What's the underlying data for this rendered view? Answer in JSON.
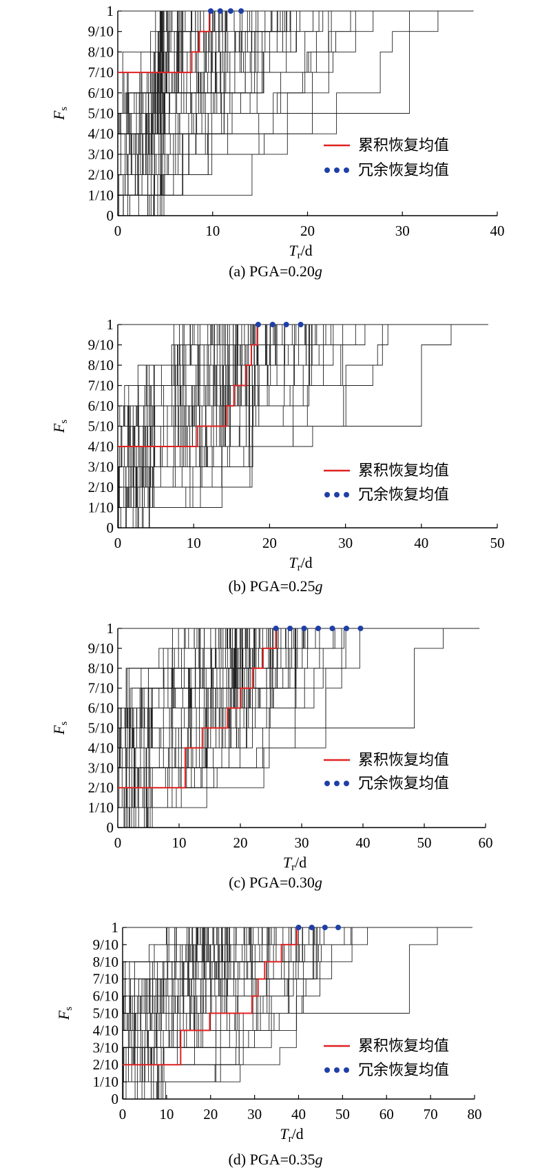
{
  "legend": {
    "cumulative_label": "累积恢复均值",
    "redundant_label": "冗余恢复均值",
    "cumulative_color": "#e02020",
    "redundant_color": "#1f3fa8"
  },
  "axis_label": {
    "y_main": "F",
    "y_sub": "s",
    "x_main": "T",
    "x_sub": "r",
    "x_unit": "/d"
  },
  "colors": {
    "traces": "#1f1f1f",
    "axis": "#000000"
  },
  "y_tick_labels": [
    "0",
    "1/10",
    "2/10",
    "3/10",
    "4/10",
    "5/10",
    "6/10",
    "7/10",
    "8/10",
    "9/10",
    "1"
  ],
  "chart_data": [
    {
      "type": "line",
      "caption_prefix": "(a) PGA=0.20",
      "caption_suffix": "g",
      "xlim": [
        0,
        40
      ],
      "x_ticks": [
        0,
        10,
        20,
        30,
        40
      ],
      "ylim": [
        0,
        1
      ],
      "cumulative_mean_steps": [
        [
          0,
          0.7
        ],
        [
          7.8,
          0.8
        ],
        [
          8.6,
          0.9
        ],
        [
          9.7,
          1.0
        ]
      ],
      "redundant_mean": {
        "y": 1.0,
        "x": [
          9.8,
          10.8,
          11.9,
          13.0
        ]
      },
      "traces": {
        "x_start_range": [
          0,
          5
        ],
        "x_end_range": [
          5,
          33
        ],
        "long_tail_x": 37.5
      }
    },
    {
      "type": "line",
      "caption_prefix": "(b) PGA=0.25",
      "caption_suffix": "g",
      "xlim": [
        0,
        50
      ],
      "x_ticks": [
        0,
        10,
        20,
        30,
        40,
        50
      ],
      "ylim": [
        0,
        1
      ],
      "cumulative_mean_steps": [
        [
          0,
          0.4
        ],
        [
          10.5,
          0.5
        ],
        [
          14.3,
          0.6
        ],
        [
          15.3,
          0.7
        ],
        [
          16.9,
          0.8
        ],
        [
          17.6,
          0.9
        ],
        [
          18.4,
          1.0
        ]
      ],
      "redundant_mean": {
        "y": 1.0,
        "x": [
          18.5,
          20.4,
          22.2,
          24.1
        ]
      },
      "traces": {
        "x_start_range": [
          0,
          5
        ],
        "x_end_range": [
          18,
          43
        ],
        "long_tail_x": 48.8
      }
    },
    {
      "type": "line",
      "caption_prefix": "(c) PGA=0.30",
      "caption_suffix": "g",
      "xlim": [
        0,
        60
      ],
      "x_ticks": [
        0,
        10,
        20,
        30,
        40,
        50,
        60
      ],
      "ylim": [
        0,
        1
      ],
      "cumulative_mean_steps": [
        [
          0,
          0.2
        ],
        [
          11.0,
          0.4
        ],
        [
          13.8,
          0.5
        ],
        [
          17.9,
          0.6
        ],
        [
          20.0,
          0.7
        ],
        [
          22.0,
          0.8
        ],
        [
          23.7,
          0.9
        ],
        [
          25.8,
          1.0
        ]
      ],
      "redundant_mean": {
        "y": 1.0,
        "x": [
          25.8,
          28.1,
          30.4,
          32.7,
          35.0,
          37.3,
          39.6
        ]
      },
      "traces": {
        "x_start_range": [
          0,
          6
        ],
        "x_end_range": [
          20,
          52
        ],
        "long_tail_x": 59.0
      }
    },
    {
      "type": "line",
      "caption_prefix": "(d) PGA=0.35",
      "caption_suffix": "g",
      "xlim": [
        0,
        80
      ],
      "x_ticks": [
        0,
        10,
        20,
        30,
        40,
        50,
        60,
        70,
        80
      ],
      "ylim": [
        0,
        1
      ],
      "cumulative_mean_steps": [
        [
          0,
          0.2
        ],
        [
          13.2,
          0.4
        ],
        [
          19.8,
          0.5
        ],
        [
          29.4,
          0.6
        ],
        [
          30.8,
          0.7
        ],
        [
          32.3,
          0.8
        ],
        [
          36.1,
          0.9
        ],
        [
          39.6,
          1.0
        ]
      ],
      "redundant_mean": {
        "y": 1.0,
        "x": [
          40.0,
          43.0,
          46.0,
          49.0
        ]
      },
      "traces": {
        "x_start_range": [
          0,
          10
        ],
        "x_end_range": [
          25,
          66
        ],
        "long_tail_x": 79.5
      }
    }
  ]
}
